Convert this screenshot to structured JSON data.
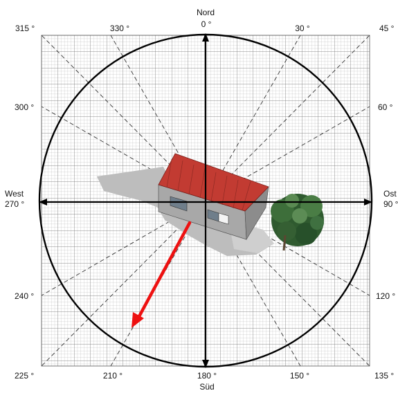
{
  "compass": {
    "north_label": "Nord",
    "south_label": "Süd",
    "east_label": "Ost",
    "west_label": "West",
    "angles": {
      "a0": "0 °",
      "a30": "30 °",
      "a45": "45 °",
      "a60": "60 °",
      "a90": "90 °",
      "a120": "120 °",
      "a135": "135 °",
      "a150": "150 °",
      "a180": "180 °",
      "a210": "210 °",
      "a225": "225 °",
      "a240": "240 °",
      "a270": "270 °",
      "a300": "300 °",
      "a315": "315 °",
      "a330": "330 °"
    }
  },
  "colors": {
    "grid": "#9a9a9a",
    "circle": "#000000",
    "arrow": "#ee1111",
    "roof": "#c23b32",
    "wall": "#a7a7a7",
    "shadow": "#bdbdbd",
    "tree": "#2f5a2f"
  },
  "icons": [
    "house-icon",
    "tree-icon",
    "shadow-shape",
    "sun-direction-arrow"
  ]
}
